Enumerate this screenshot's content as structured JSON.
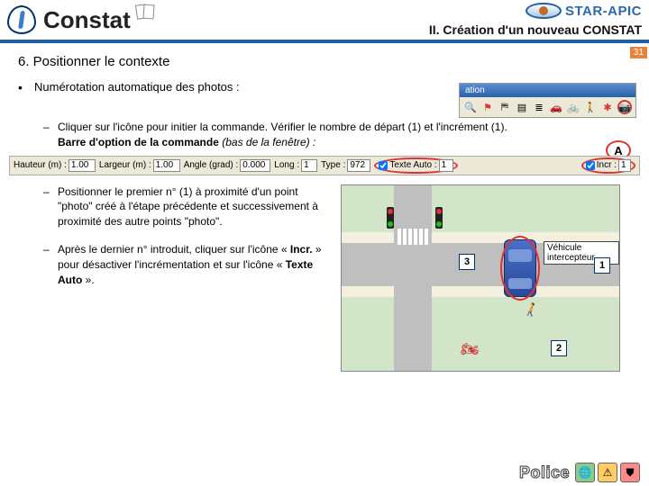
{
  "header": {
    "main_title": "Constat",
    "brand": "STAR-APIC",
    "section_title": "II.  Création d'un nouveau CONSTAT",
    "page_number": "31"
  },
  "content": {
    "heading": "6. Positionner le contexte",
    "bullet_text": "Numérotation automatique des photos :",
    "toolbar_title": "ation",
    "A_label": "A",
    "item1_a": "Cliquer sur l'icône pour initier la commande. Vérifier le nombre de départ (1) et l'incrément (1).",
    "item1_b": "Barre d'option de la commande",
    "item1_c": " (bas de la fenêtre) :",
    "item2": "Positionner le premier n° (1) à proximité d'un point \"photo\" créé à l'étape précédente et successivement à proximité des autre points \"photo\".",
    "item3": "Après le dernier n° introduit, cliquer sur l'icône « Incr. » pour désactiver l'incrémentation et sur l'icône « Texte Auto »."
  },
  "option_bar": {
    "f1_label": "Hauteur (m) :",
    "f1_val": "1.00",
    "f2_label": "Largeur (m) :",
    "f2_val": "1.00",
    "f3_label": "Angle (grad) :",
    "f3_val": "0.000",
    "f4_label": "Long :",
    "f4_val": "1",
    "f5_label": "Type :",
    "f5_val": "972",
    "cb1": "Texte Auto :",
    "cb1_val": "1",
    "cb2": "Incr :",
    "cb2_val": "1"
  },
  "map": {
    "legend": "Véhicule intercepteur",
    "n1": "1",
    "n2": "2",
    "n3": "3"
  },
  "footer": {
    "police": "Police"
  },
  "colors": {
    "accent_blue": "#1e5fa6",
    "orange": "#e8833a",
    "circle": "#d33",
    "toolbar_bg": "#ece9d8",
    "map_grass": "#d3e5c8",
    "road": "#bfbfbf"
  }
}
